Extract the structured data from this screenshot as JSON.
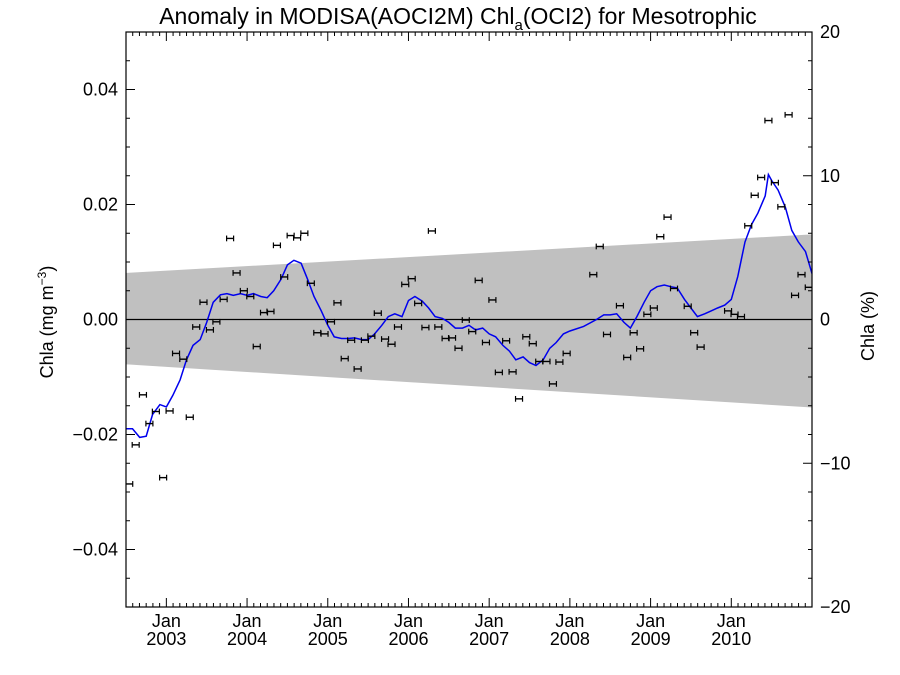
{
  "chart_data": {
    "type": "scatter",
    "title": "Anomaly in MODISA(AOCI2M) Chl",
    "title_sub": "a",
    "title_suffix": "(OCI2) for Mesotrophic",
    "ylabel_left": "Chla (mg m",
    "ylabel_left_sup": "−3",
    "ylabel_left_close": ")",
    "ylabel_right": "Chla (%)",
    "xlim": [
      2002.5,
      2011.0
    ],
    "ylim_left": [
      -0.05,
      0.05
    ],
    "ylim_right": [
      -20,
      20
    ],
    "x_ticks": [
      {
        "month": "Jan",
        "year": "2003",
        "x": 2003.0
      },
      {
        "month": "Jan",
        "year": "2004",
        "x": 2004.0
      },
      {
        "month": "Jan",
        "year": "2005",
        "x": 2005.0
      },
      {
        "month": "Jan",
        "year": "2006",
        "x": 2006.0
      },
      {
        "month": "Jan",
        "year": "2007",
        "x": 2007.0
      },
      {
        "month": "Jan",
        "year": "2008",
        "x": 2008.0
      },
      {
        "month": "Jan",
        "year": "2009",
        "x": 2009.0
      },
      {
        "month": "Jan",
        "year": "2010",
        "x": 2010.0
      }
    ],
    "y_ticks_left": [
      {
        "value": 0.04,
        "label": "0.04"
      },
      {
        "value": 0.02,
        "label": "0.02"
      },
      {
        "value": 0.0,
        "label": "0.00"
      },
      {
        "value": -0.02,
        "label": "−0.02"
      },
      {
        "value": -0.04,
        "label": "−0.04"
      }
    ],
    "y_ticks_right": [
      {
        "value": 20,
        "label": "20"
      },
      {
        "value": 10,
        "label": "10"
      },
      {
        "value": 0,
        "label": "0"
      },
      {
        "value": -10,
        "label": "−10"
      },
      {
        "value": -20,
        "label": "−20"
      }
    ],
    "uncertainty_band": {
      "color": "#c0c0c0",
      "upper": [
        [
          2002.5,
          0.0081
        ],
        [
          2011.0,
          0.0148
        ]
      ],
      "lower": [
        [
          2002.5,
          -0.0078
        ],
        [
          2011.0,
          -0.0153
        ]
      ]
    },
    "zero_line": 0.0,
    "colors": {
      "points": "#000000",
      "smooth": "#0000ee",
      "band": "#c0c0c0"
    },
    "series": [
      {
        "style": "points-with-error-bars",
        "points": [
          [
            2002.54,
            -0.0286
          ],
          [
            2002.62,
            -0.0218
          ],
          [
            2002.71,
            -0.0131
          ],
          [
            2002.79,
            -0.0181
          ],
          [
            2002.87,
            -0.016
          ],
          [
            2002.96,
            -0.0275
          ],
          [
            2003.04,
            -0.0159
          ],
          [
            2003.12,
            -0.0059
          ],
          [
            2003.21,
            -0.0069
          ],
          [
            2003.29,
            -0.017
          ],
          [
            2003.37,
            -0.0013
          ],
          [
            2003.46,
            0.003
          ],
          [
            2003.54,
            -0.0018
          ],
          [
            2003.62,
            -0.0004
          ],
          [
            2003.71,
            0.0035
          ],
          [
            2003.79,
            0.0141
          ],
          [
            2003.87,
            0.0081
          ],
          [
            2003.96,
            0.005
          ],
          [
            2004.04,
            0.004
          ],
          [
            2004.12,
            -0.0047
          ],
          [
            2004.21,
            0.0012
          ],
          [
            2004.29,
            0.0014
          ],
          [
            2004.37,
            0.0129
          ],
          [
            2004.46,
            0.0074
          ],
          [
            2004.54,
            0.0146
          ],
          [
            2004.62,
            0.0142
          ],
          [
            2004.71,
            0.015
          ],
          [
            2004.79,
            0.0063
          ],
          [
            2004.87,
            -0.0023
          ],
          [
            2004.96,
            -0.0025
          ],
          [
            2005.04,
            -0.0004
          ],
          [
            2005.12,
            0.0029
          ],
          [
            2005.21,
            -0.0068
          ],
          [
            2005.29,
            -0.0036
          ],
          [
            2005.37,
            -0.0086
          ],
          [
            2005.46,
            -0.0036
          ],
          [
            2005.54,
            -0.0029
          ],
          [
            2005.62,
            0.0011
          ],
          [
            2005.71,
            -0.0034
          ],
          [
            2005.79,
            -0.0043
          ],
          [
            2005.87,
            -0.0013
          ],
          [
            2005.96,
            0.0061
          ],
          [
            2006.04,
            0.0071
          ],
          [
            2006.12,
            0.0028
          ],
          [
            2006.21,
            -0.0014
          ],
          [
            2006.29,
            0.0154
          ],
          [
            2006.37,
            -0.0013
          ],
          [
            2006.46,
            -0.0033
          ],
          [
            2006.54,
            -0.0032
          ],
          [
            2006.62,
            -0.005
          ],
          [
            2006.71,
            -0.0001
          ],
          [
            2006.79,
            -0.0021
          ],
          [
            2006.87,
            0.0068
          ],
          [
            2006.96,
            -0.004
          ],
          [
            2007.04,
            0.0034
          ],
          [
            2007.12,
            -0.0092
          ],
          [
            2007.21,
            -0.0037
          ],
          [
            2007.29,
            -0.0091
          ],
          [
            2007.37,
            -0.0138
          ],
          [
            2007.46,
            -0.003
          ],
          [
            2007.54,
            -0.0042
          ],
          [
            2007.62,
            -0.0073
          ],
          [
            2007.71,
            -0.0073
          ],
          [
            2007.79,
            -0.0112
          ],
          [
            2007.87,
            -0.0074
          ],
          [
            2007.96,
            -0.0059
          ],
          [
            2008.29,
            0.0078
          ],
          [
            2008.37,
            0.0127
          ],
          [
            2008.46,
            -0.0026
          ],
          [
            2008.62,
            0.0024
          ],
          [
            2008.71,
            -0.0066
          ],
          [
            2008.79,
            -0.0023
          ],
          [
            2008.87,
            -0.0051
          ],
          [
            2008.96,
            0.0009
          ],
          [
            2009.04,
            0.002
          ],
          [
            2009.12,
            0.0144
          ],
          [
            2009.21,
            0.0178
          ],
          [
            2009.29,
            0.0054
          ],
          [
            2009.46,
            0.0023
          ],
          [
            2009.54,
            -0.0023
          ],
          [
            2009.62,
            -0.0048
          ],
          [
            2009.96,
            0.0015
          ],
          [
            2010.04,
            0.0009
          ],
          [
            2010.12,
            0.0005
          ],
          [
            2010.21,
            0.0163
          ],
          [
            2010.29,
            0.0216
          ],
          [
            2010.37,
            0.0247
          ],
          [
            2010.46,
            0.0346
          ],
          [
            2010.54,
            0.0238
          ],
          [
            2010.62,
            0.0196
          ],
          [
            2010.71,
            0.0356
          ],
          [
            2010.79,
            0.0042
          ],
          [
            2010.87,
            0.0078
          ],
          [
            2010.96,
            0.0056
          ]
        ],
        "error": 0.0005
      },
      {
        "style": "smoothed-line",
        "points": [
          [
            2002.5,
            -0.019
          ],
          [
            2002.58,
            -0.019
          ],
          [
            2002.67,
            -0.0205
          ],
          [
            2002.75,
            -0.0203
          ],
          [
            2002.83,
            -0.0165
          ],
          [
            2002.92,
            -0.0148
          ],
          [
            2003.0,
            -0.0152
          ],
          [
            2003.08,
            -0.0132
          ],
          [
            2003.17,
            -0.0105
          ],
          [
            2003.25,
            -0.007
          ],
          [
            2003.33,
            -0.0045
          ],
          [
            2003.42,
            -0.0035
          ],
          [
            2003.5,
            -0.0005
          ],
          [
            2003.58,
            0.003
          ],
          [
            2003.67,
            0.0043
          ],
          [
            2003.75,
            0.0045
          ],
          [
            2003.83,
            0.0042
          ],
          [
            2003.92,
            0.0045
          ],
          [
            2004.0,
            0.0042
          ],
          [
            2004.08,
            0.0045
          ],
          [
            2004.17,
            0.004
          ],
          [
            2004.25,
            0.0038
          ],
          [
            2004.33,
            0.005
          ],
          [
            2004.42,
            0.007
          ],
          [
            2004.5,
            0.0095
          ],
          [
            2004.58,
            0.0103
          ],
          [
            2004.67,
            0.0098
          ],
          [
            2004.75,
            0.007
          ],
          [
            2004.83,
            0.004
          ],
          [
            2004.92,
            0.0015
          ],
          [
            2005.0,
            -0.001
          ],
          [
            2005.08,
            -0.003
          ],
          [
            2005.17,
            -0.0033
          ],
          [
            2005.25,
            -0.0033
          ],
          [
            2005.33,
            -0.0032
          ],
          [
            2005.42,
            -0.0035
          ],
          [
            2005.5,
            -0.0035
          ],
          [
            2005.58,
            -0.0025
          ],
          [
            2005.67,
            -0.001
          ],
          [
            2005.75,
            0.0005
          ],
          [
            2005.83,
            0.001
          ],
          [
            2005.92,
            0.0005
          ],
          [
            2006.0,
            0.0033
          ],
          [
            2006.08,
            0.004
          ],
          [
            2006.17,
            0.0032
          ],
          [
            2006.25,
            0.002
          ],
          [
            2006.33,
            0.0005
          ],
          [
            2006.42,
            0.0002
          ],
          [
            2006.5,
            -0.0005
          ],
          [
            2006.58,
            -0.0015
          ],
          [
            2006.67,
            -0.0015
          ],
          [
            2006.75,
            -0.001
          ],
          [
            2006.83,
            -0.0018
          ],
          [
            2006.92,
            -0.0015
          ],
          [
            2007.0,
            -0.0025
          ],
          [
            2007.08,
            -0.003
          ],
          [
            2007.17,
            -0.0045
          ],
          [
            2007.25,
            -0.0055
          ],
          [
            2007.33,
            -0.007
          ],
          [
            2007.42,
            -0.0065
          ],
          [
            2007.5,
            -0.0075
          ],
          [
            2007.58,
            -0.008
          ],
          [
            2007.67,
            -0.007
          ],
          [
            2007.75,
            -0.005
          ],
          [
            2007.83,
            -0.004
          ],
          [
            2007.92,
            -0.0025
          ],
          [
            2008.0,
            -0.002
          ],
          [
            2008.17,
            -0.0012
          ],
          [
            2008.33,
            0.0
          ],
          [
            2008.42,
            0.0008
          ],
          [
            2008.5,
            0.0008
          ],
          [
            2008.58,
            0.001
          ],
          [
            2008.67,
            -0.0005
          ],
          [
            2008.75,
            -0.0015
          ],
          [
            2008.83,
            0.0005
          ],
          [
            2008.92,
            0.003
          ],
          [
            2009.0,
            0.005
          ],
          [
            2009.08,
            0.0057
          ],
          [
            2009.17,
            0.006
          ],
          [
            2009.25,
            0.0057
          ],
          [
            2009.33,
            0.0055
          ],
          [
            2009.42,
            0.0035
          ],
          [
            2009.5,
            0.002
          ],
          [
            2009.58,
            0.0005
          ],
          [
            2009.67,
            0.001
          ],
          [
            2009.75,
            0.0015
          ],
          [
            2009.83,
            0.002
          ],
          [
            2009.92,
            0.0025
          ],
          [
            2010.0,
            0.0035
          ],
          [
            2010.08,
            0.0075
          ],
          [
            2010.17,
            0.0135
          ],
          [
            2010.25,
            0.0165
          ],
          [
            2010.33,
            0.0185
          ],
          [
            2010.42,
            0.0215
          ],
          [
            2010.46,
            0.0252
          ],
          [
            2010.5,
            0.0242
          ],
          [
            2010.58,
            0.0225
          ],
          [
            2010.67,
            0.0195
          ],
          [
            2010.75,
            0.0155
          ],
          [
            2010.83,
            0.0135
          ],
          [
            2010.92,
            0.0118
          ],
          [
            2011.0,
            0.008
          ]
        ]
      }
    ]
  }
}
